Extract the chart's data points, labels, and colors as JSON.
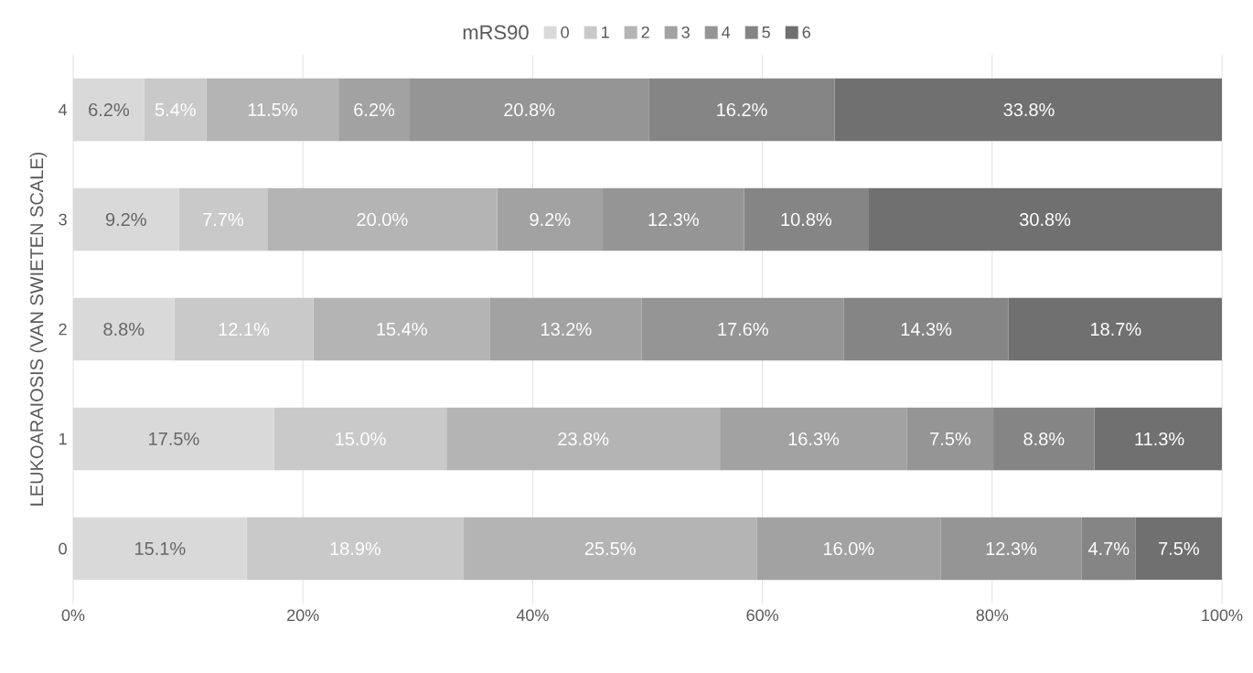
{
  "chart_data": {
    "type": "bar",
    "orientation": "horizontal",
    "stacked": true,
    "ylabel": "LEUKOARAIOSIS (VAN SWIETEN SCALE)",
    "legend_title": "mRS90",
    "legend": "top",
    "categories": [
      "4",
      "3",
      "2",
      "1",
      "0"
    ],
    "series": [
      {
        "name": "0",
        "color": "#d9d9d9",
        "values": [
          6.2,
          9.2,
          8.8,
          17.5,
          15.1
        ],
        "value_labels": [
          "6.2%",
          "9.2%",
          "8.8%",
          "17.5%",
          "15.1%"
        ]
      },
      {
        "name": "1",
        "color": "#c9c9c9",
        "values": [
          5.4,
          7.7,
          12.1,
          15.0,
          18.9
        ],
        "value_labels": [
          "5.4%",
          "7.7%",
          "12.1%",
          "15.0%",
          "18.9%"
        ]
      },
      {
        "name": "2",
        "color": "#b4b4b4",
        "values": [
          11.5,
          20.0,
          15.4,
          23.8,
          25.5
        ],
        "value_labels": [
          "11.5%",
          "20.0%",
          "15.4%",
          "23.8%",
          "25.5%"
        ]
      },
      {
        "name": "3",
        "color": "#a2a2a2",
        "values": [
          6.2,
          9.2,
          13.2,
          16.3,
          16.0
        ],
        "value_labels": [
          "6.2%",
          "9.2%",
          "13.2%",
          "16.3%",
          "16.0%"
        ]
      },
      {
        "name": "4",
        "color": "#959595",
        "values": [
          20.8,
          12.3,
          17.6,
          7.5,
          12.3
        ],
        "value_labels": [
          "20.8%",
          "12.3%",
          "17.6%",
          "7.5%",
          "12.3%"
        ]
      },
      {
        "name": "5",
        "color": "#858585",
        "values": [
          16.2,
          10.8,
          14.3,
          8.8,
          4.7
        ],
        "value_labels": [
          "16.2%",
          "10.8%",
          "14.3%",
          "8.8%",
          "4.7%"
        ]
      },
      {
        "name": "6",
        "color": "#707070",
        "values": [
          33.8,
          30.8,
          18.7,
          11.3,
          7.5
        ],
        "value_labels": [
          "33.8%",
          "30.8%",
          "18.7%",
          "11.3%",
          "7.5%"
        ]
      }
    ],
    "xlim": [
      0,
      100
    ],
    "xticks": [
      {
        "value": 0,
        "label": "0%"
      },
      {
        "value": 20,
        "label": "20%"
      },
      {
        "value": 40,
        "label": "40%"
      },
      {
        "value": 60,
        "label": "60%"
      },
      {
        "value": 80,
        "label": "80%"
      },
      {
        "value": 100,
        "label": "100%"
      }
    ],
    "grid": "x"
  }
}
